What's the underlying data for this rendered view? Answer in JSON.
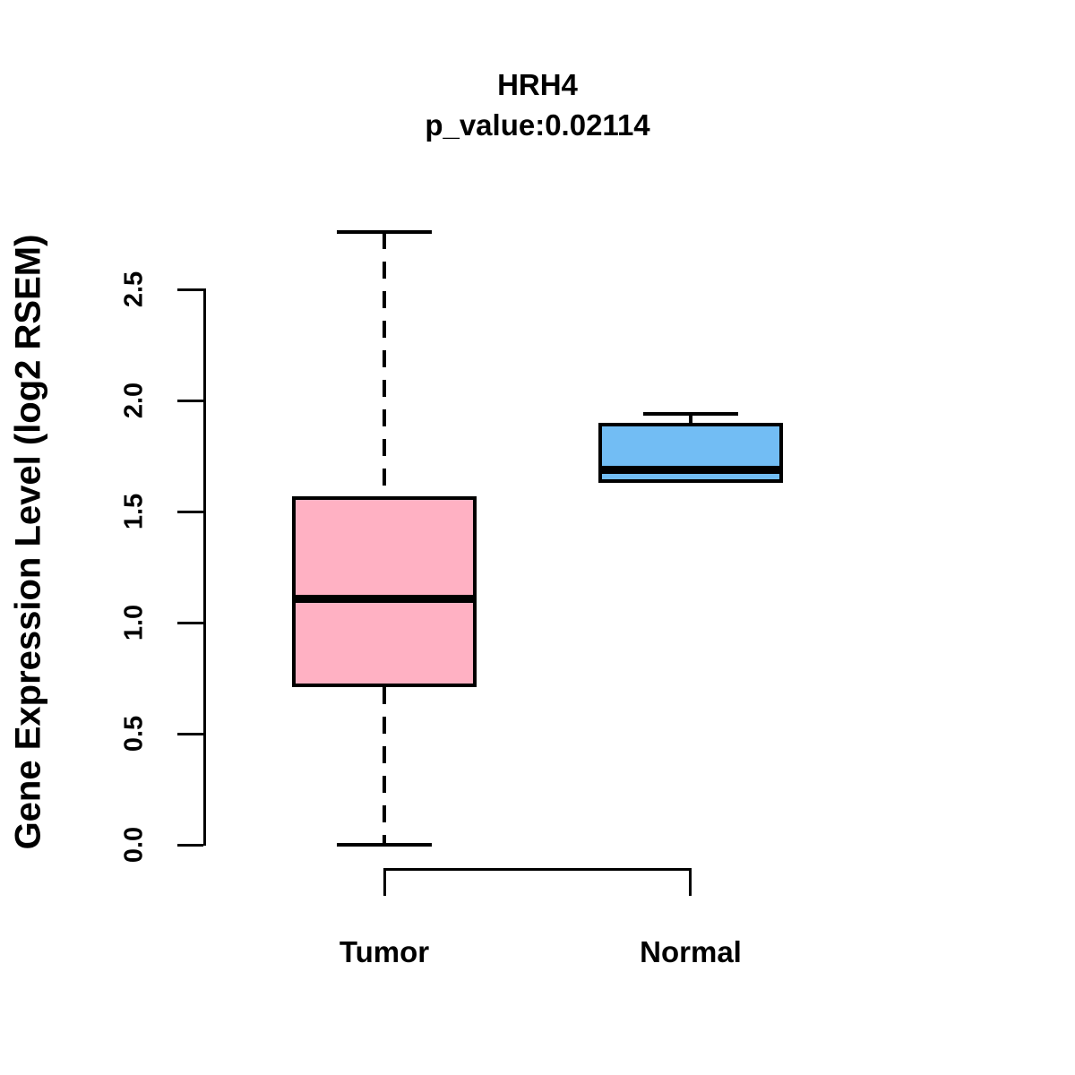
{
  "chart_data": {
    "type": "boxplot",
    "title": "HRH4",
    "subtitle": "p_value:0.02114",
    "ylabel": "Gene Expression Level (log2 RSEM)",
    "xlabel": "",
    "ylim": [
      0.0,
      2.5
    ],
    "yticks": [
      0.0,
      0.5,
      1.0,
      1.5,
      2.0,
      2.5
    ],
    "ytick_labels": [
      "0.0",
      "0.5",
      "1.0",
      "1.5",
      "2.0",
      "2.5"
    ],
    "grid": false,
    "legend": "none",
    "series": [
      {
        "name": "Tumor",
        "lower_whisker": 0.0,
        "q1": 0.71,
        "median": 1.11,
        "q3": 1.57,
        "upper_whisker": 2.76,
        "fill_color": "#FFB1C3",
        "whisker_style": "dashed"
      },
      {
        "name": "Normal",
        "lower_whisker": 1.63,
        "q1": 1.63,
        "median": 1.69,
        "q3": 1.9,
        "upper_whisker": 1.94,
        "fill_color": "#72BDF4",
        "whisker_style": "dashed"
      }
    ]
  },
  "colors": {
    "foreground": "#000000",
    "background": "#ffffff",
    "tumor_fill": "#FFB1C3",
    "normal_fill": "#72BDF4"
  }
}
